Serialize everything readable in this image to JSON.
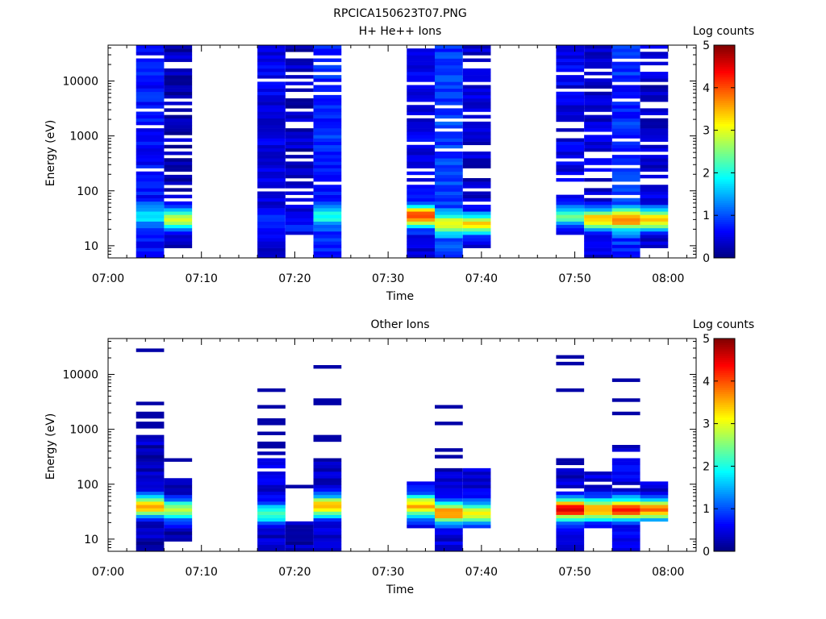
{
  "page_title": "RPCICA150623T07.PNG",
  "chart_data": [
    {
      "type": "heatmap",
      "title": "H+ He++ Ions",
      "xlabel": "Time",
      "ylabel": "Energy (eV)",
      "yscale": "log",
      "ylim": [
        6,
        45000
      ],
      "y_ticks": [
        10,
        100,
        1000,
        10000
      ],
      "y_tick_labels": [
        "10",
        "100",
        "1000",
        "10000"
      ],
      "x_ticks": [
        "07:00",
        "07:10",
        "07:20",
        "07:30",
        "07:40",
        "07:50",
        "08:00"
      ],
      "xlim": [
        "07:00",
        "08:03"
      ],
      "colorbar": {
        "label": "Log counts",
        "range": [
          0,
          5
        ],
        "ticks": [
          "0",
          "1",
          "2",
          "3",
          "4",
          "5"
        ]
      },
      "columns": [
        {
          "start": "07:03",
          "end": "07:06",
          "seed": 11,
          "emin": 6,
          "top": 45000,
          "base": 0.7,
          "peak_e": 35,
          "peak_v": 1.8,
          "gap": 0.06
        },
        {
          "start": "07:06",
          "end": "07:09",
          "seed": 23,
          "emin": 9,
          "top": 45000,
          "base": 0.3,
          "peak_e": 30,
          "peak_v": 3.1,
          "gap": 0.38
        },
        {
          "start": "07:16",
          "end": "07:19",
          "seed": 37,
          "emin": 6,
          "top": 45000,
          "base": 0.5,
          "peak_e": 30,
          "peak_v": 1.0,
          "gap": 0.06
        },
        {
          "start": "07:19",
          "end": "07:22",
          "seed": 41,
          "emin": 15,
          "top": 45000,
          "base": 0.3,
          "peak_e": 25,
          "peak_v": 0.8,
          "gap": 0.35
        },
        {
          "start": "07:22",
          "end": "07:25",
          "seed": 53,
          "emin": 6,
          "top": 45000,
          "base": 0.8,
          "peak_e": 35,
          "peak_v": 2.0,
          "gap": 0.12
        },
        {
          "start": "07:32",
          "end": "07:35",
          "seed": 61,
          "emin": 6,
          "top": 45000,
          "base": 0.5,
          "peak_e": 35,
          "peak_v": 4.2,
          "gap": 0.24
        },
        {
          "start": "07:35",
          "end": "07:38",
          "seed": 71,
          "emin": 6,
          "top": 45000,
          "base": 0.9,
          "peak_e": 25,
          "peak_v": 3.0,
          "gap": 0.08
        },
        {
          "start": "07:38",
          "end": "07:41",
          "seed": 83,
          "emin": 9,
          "top": 45000,
          "base": 0.4,
          "peak_e": 25,
          "peak_v": 3.2,
          "gap": 0.3
        },
        {
          "start": "07:48",
          "end": "07:51",
          "seed": 97,
          "emin": 15,
          "top": 45000,
          "base": 0.5,
          "peak_e": 35,
          "peak_v": 2.3,
          "gap": 0.16
        },
        {
          "start": "07:51",
          "end": "07:54",
          "seed": 101,
          "emin": 6,
          "top": 45000,
          "base": 0.4,
          "peak_e": 30,
          "peak_v": 3.5,
          "gap": 0.3
        },
        {
          "start": "07:54",
          "end": "07:57",
          "seed": 113,
          "emin": 6,
          "top": 45000,
          "base": 0.8,
          "peak_e": 30,
          "peak_v": 3.9,
          "gap": 0.1
        },
        {
          "start": "07:57",
          "end": "08:00",
          "seed": 127,
          "emin": 9,
          "top": 45000,
          "base": 0.4,
          "peak_e": 30,
          "peak_v": 3.6,
          "gap": 0.26
        }
      ]
    },
    {
      "type": "heatmap",
      "title": "Other Ions",
      "xlabel": "Time",
      "ylabel": "Energy (eV)",
      "yscale": "log",
      "ylim": [
        6,
        45000
      ],
      "y_ticks": [
        10,
        100,
        1000,
        10000
      ],
      "y_tick_labels": [
        "10",
        "100",
        "1000",
        "10000"
      ],
      "x_ticks": [
        "07:00",
        "07:10",
        "07:20",
        "07:30",
        "07:40",
        "07:50",
        "08:00"
      ],
      "xlim": [
        "07:00",
        "08:03"
      ],
      "colorbar": {
        "label": "Log counts",
        "range": [
          0,
          5
        ],
        "ticks": [
          "0",
          "1",
          "2",
          "3",
          "4",
          "5"
        ]
      },
      "columns": [
        {
          "start": "07:03",
          "end": "07:06",
          "seed": 211,
          "emin": 6,
          "top": 800,
          "base": 0.3,
          "peak_e": 40,
          "peak_v": 3.6,
          "gap": 0.15,
          "sparse": [
            27000,
            3000,
            2000,
            1800,
            1300,
            1100
          ]
        },
        {
          "start": "07:06",
          "end": "07:09",
          "seed": 223,
          "emin": 9,
          "top": 150,
          "base": 0.3,
          "peak_e": 35,
          "peak_v": 2.6,
          "gap": 0.25,
          "sparse": [
            270
          ]
        },
        {
          "start": "07:16",
          "end": "07:19",
          "seed": 233,
          "emin": 6,
          "top": 600,
          "base": 0.4,
          "peak_e": 30,
          "peak_v": 2.2,
          "gap": 0.2,
          "sparse": [
            5000,
            2600,
            1400,
            1200,
            900
          ]
        },
        {
          "start": "07:19",
          "end": "07:22",
          "seed": 241,
          "emin": 6,
          "top": 22,
          "base": 0.3,
          "peak_e": 15,
          "peak_v": 0.4,
          "gap": 0.0,
          "sparse": [
            90
          ]
        },
        {
          "start": "07:22",
          "end": "07:25",
          "seed": 251,
          "emin": 6,
          "top": 300,
          "base": 0.4,
          "peak_e": 40,
          "peak_v": 3.5,
          "gap": 0.2,
          "sparse": [
            13000,
            3400,
            2800,
            750,
            650
          ]
        },
        {
          "start": "07:32",
          "end": "07:35",
          "seed": 263,
          "emin": 15,
          "top": 120,
          "base": 0.5,
          "peak_e": 40,
          "peak_v": 3.6,
          "gap": 0.1,
          "sparse": []
        },
        {
          "start": "07:35",
          "end": "07:38",
          "seed": 271,
          "emin": 6,
          "top": 200,
          "base": 0.4,
          "peak_e": 30,
          "peak_v": 3.8,
          "gap": 0.1,
          "sparse": [
            2600,
            1200,
            400,
            300
          ]
        },
        {
          "start": "07:38",
          "end": "07:41",
          "seed": 281,
          "emin": 15,
          "top": 200,
          "base": 0.5,
          "peak_e": 30,
          "peak_v": 3.2,
          "gap": 0.1,
          "sparse": []
        },
        {
          "start": "07:48",
          "end": "07:51",
          "seed": 293,
          "emin": 6,
          "top": 200,
          "base": 0.4,
          "peak_e": 35,
          "peak_v": 4.6,
          "gap": 0.25,
          "sparse": [
            22000,
            21000,
            15000,
            5000,
            270,
            250
          ]
        },
        {
          "start": "07:51",
          "end": "07:54",
          "seed": 307,
          "emin": 15,
          "top": 170,
          "base": 0.5,
          "peak_e": 35,
          "peak_v": 3.7,
          "gap": 0.15,
          "sparse": []
        },
        {
          "start": "07:54",
          "end": "07:57",
          "seed": 311,
          "emin": 6,
          "top": 500,
          "base": 0.5,
          "peak_e": 35,
          "peak_v": 4.3,
          "gap": 0.15,
          "sparse": [
            8000,
            3400,
            3200,
            2000
          ]
        },
        {
          "start": "07:57",
          "end": "08:00",
          "seed": 317,
          "emin": 20,
          "top": 120,
          "base": 0.4,
          "peak_e": 35,
          "peak_v": 3.7,
          "gap": 0.15,
          "sparse": []
        }
      ]
    }
  ]
}
